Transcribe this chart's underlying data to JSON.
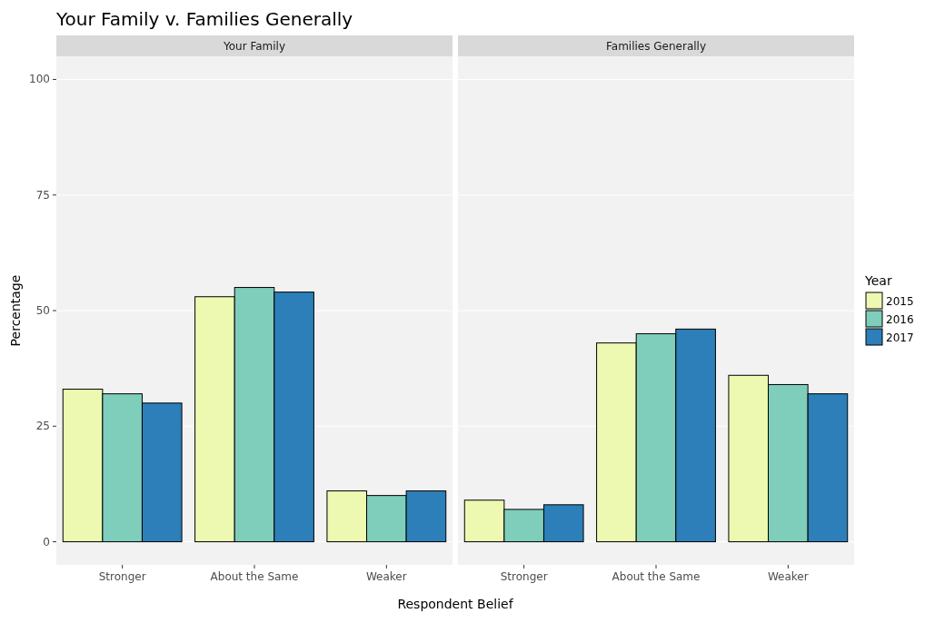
{
  "chart_data": [
    {
      "type": "bar",
      "title": "Your Family v. Families Generally",
      "subtitle": "Your Family",
      "xlabel": "Respondent Belief",
      "ylabel": "Percentage",
      "legend_title": "Year",
      "legend": "right",
      "categories": [
        "Stronger",
        "About the Same",
        "Weaker"
      ],
      "series": [
        {
          "name": "2015",
          "color": "#edf8b1",
          "values": [
            33,
            53,
            11
          ]
        },
        {
          "name": "2016",
          "color": "#7fcdbb",
          "values": [
            32,
            55,
            10
          ]
        },
        {
          "name": "2017",
          "color": "#2c7fb8",
          "values": [
            30,
            54,
            11
          ]
        }
      ],
      "ylim": [
        -5,
        105
      ],
      "yticks": [
        0,
        25,
        50,
        75,
        100
      ],
      "grid": "y"
    },
    {
      "type": "bar",
      "subtitle": "Families Generally",
      "categories": [
        "Stronger",
        "About the Same",
        "Weaker"
      ],
      "series": [
        {
          "color": "#edf8b1",
          "values": [
            9,
            43,
            36
          ]
        },
        {
          "color": "#7fcdbb",
          "values": [
            7,
            45,
            34
          ]
        },
        {
          "color": "#2c7fb8",
          "values": [
            8,
            46,
            32
          ]
        }
      ],
      "ylim": [
        -5,
        105
      ],
      "yticks": [
        0,
        25,
        50,
        75,
        100
      ],
      "grid": "y",
      "tick_labels": "x"
    }
  ]
}
